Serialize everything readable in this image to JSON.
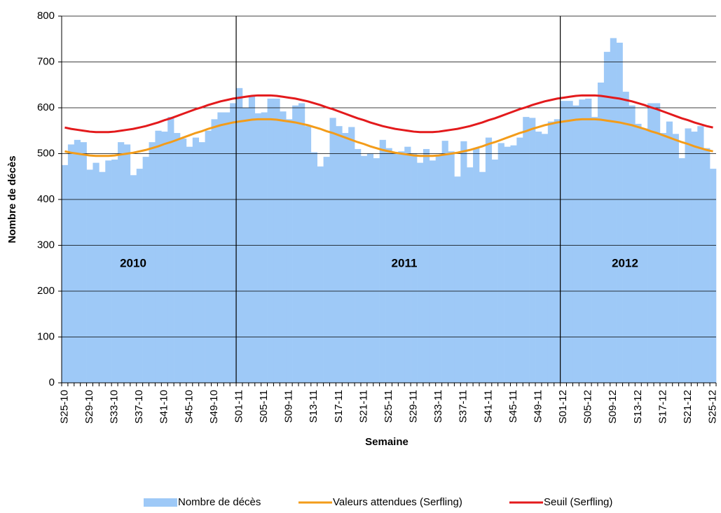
{
  "chart_data": {
    "type": "bar",
    "x_label": "Semaine",
    "y_label": "Nombre de décès",
    "annotations": [
      "2010",
      "2011",
      "2012"
    ],
    "categories": [
      "S25-10",
      null,
      null,
      null,
      "S29-10",
      null,
      null,
      null,
      "S33-10",
      null,
      null,
      null,
      "S37-10",
      null,
      null,
      null,
      "S41-10",
      null,
      null,
      null,
      "S45-10",
      null,
      null,
      null,
      "S49-10",
      null,
      null,
      null,
      "S01-11",
      null,
      null,
      null,
      "S05-11",
      null,
      null,
      null,
      "S09-11",
      null,
      null,
      null,
      "S13-11",
      null,
      null,
      null,
      "S17-11",
      null,
      null,
      null,
      "S21-11",
      null,
      null,
      null,
      "S25-11",
      null,
      null,
      null,
      "S29-11",
      null,
      null,
      null,
      "S33-11",
      null,
      null,
      null,
      "S37-11",
      null,
      null,
      null,
      "S41-11",
      null,
      null,
      null,
      "S45-11",
      null,
      null,
      null,
      "S49-11",
      null,
      null,
      null,
      "S01-12",
      null,
      null,
      null,
      "S05-12",
      null,
      null,
      null,
      "S09-12",
      null,
      null,
      null,
      "S13-12",
      null,
      null,
      null,
      "S17-12",
      null,
      null,
      null,
      "S21-12",
      null,
      null,
      null,
      "S25-12"
    ],
    "series": [
      {
        "name": "Nombre de décès",
        "type": "bar",
        "color": "#9ec9f7",
        "values": [
          475,
          520,
          530,
          525,
          465,
          480,
          460,
          485,
          487,
          525,
          520,
          453,
          467,
          493,
          525,
          550,
          548,
          580,
          545,
          533,
          515,
          535,
          525,
          550,
          575,
          590,
          590,
          610,
          643,
          600,
          627,
          588,
          590,
          620,
          620,
          592,
          575,
          605,
          610,
          560,
          503,
          472,
          493,
          578,
          560,
          545,
          558,
          510,
          495,
          500,
          490,
          530,
          512,
          500,
          505,
          515,
          500,
          480,
          510,
          485,
          495,
          528,
          505,
          450,
          527,
          470,
          512,
          460,
          535,
          487,
          523,
          515,
          518,
          535,
          580,
          578,
          548,
          543,
          570,
          575,
          615,
          615,
          605,
          618,
          620,
          580,
          655,
          722,
          752,
          742,
          635,
          605,
          565,
          555,
          610,
          610,
          545,
          570,
          543,
          490,
          555,
          548,
          560,
          512,
          467
        ]
      },
      {
        "name": "Valeurs attendues (Serfling)",
        "type": "line",
        "color": "#f39c1a",
        "values": [
          505,
          502,
          500,
          498,
          496,
          495,
          495,
          495,
          496,
          498,
          500,
          502,
          505,
          508,
          512,
          516,
          521,
          525,
          530,
          535,
          540,
          545,
          549,
          554,
          558,
          562,
          565,
          568,
          570,
          572,
          574,
          575,
          575,
          575,
          574,
          572,
          570,
          568,
          565,
          562,
          558,
          554,
          549,
          545,
          540,
          535,
          530,
          525,
          521,
          516,
          512,
          508,
          505,
          502,
          500,
          498,
          496,
          495,
          495,
          495,
          496,
          498,
          500,
          502,
          505,
          508,
          512,
          516,
          521,
          525,
          530,
          535,
          540,
          545,
          549,
          554,
          558,
          562,
          565,
          568,
          570,
          572,
          574,
          575,
          575,
          575,
          574,
          572,
          570,
          568,
          565,
          562,
          558,
          554,
          549,
          545,
          540,
          535,
          530,
          525,
          521,
          516,
          512,
          508,
          505
        ]
      },
      {
        "name": "Seuil (Serfling)",
        "type": "line",
        "color": "#e31a1c",
        "values": [
          557,
          554,
          552,
          550,
          548,
          547,
          547,
          547,
          548,
          550,
          552,
          554,
          557,
          560,
          564,
          568,
          573,
          577,
          582,
          587,
          592,
          597,
          601,
          606,
          610,
          614,
          617,
          620,
          622,
          624,
          626,
          627,
          627,
          627,
          626,
          624,
          622,
          620,
          617,
          614,
          610,
          606,
          601,
          597,
          592,
          587,
          582,
          577,
          573,
          568,
          564,
          560,
          557,
          554,
          552,
          550,
          548,
          547,
          547,
          547,
          548,
          550,
          552,
          554,
          557,
          560,
          564,
          568,
          573,
          577,
          582,
          587,
          592,
          597,
          601,
          606,
          610,
          614,
          617,
          620,
          622,
          624,
          626,
          627,
          627,
          627,
          626,
          624,
          622,
          620,
          617,
          614,
          610,
          606,
          601,
          597,
          592,
          587,
          582,
          577,
          573,
          568,
          564,
          560,
          557
        ]
      }
    ],
    "ylim": [
      0,
      800
    ],
    "yticks": [
      0,
      100,
      200,
      300,
      400,
      500,
      600,
      700,
      800
    ],
    "grid": true,
    "legend": "bottom"
  }
}
